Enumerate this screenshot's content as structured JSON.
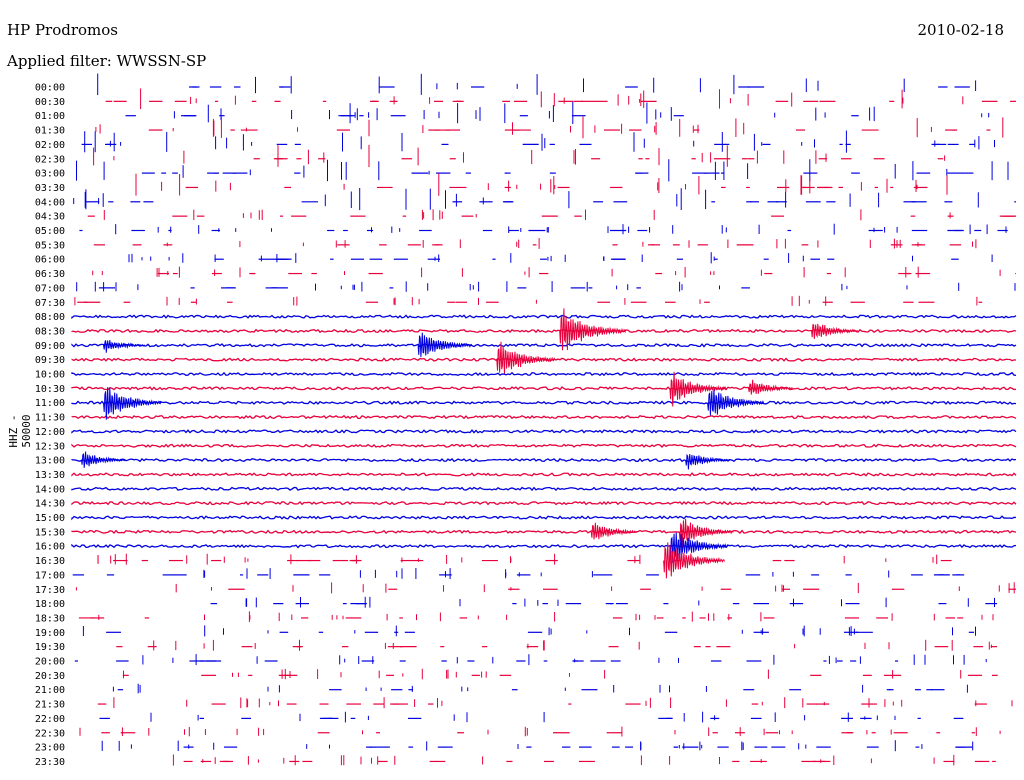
{
  "header": {
    "station": "HP Prodromos",
    "date": "2010-02-18",
    "filter_label": "Applied filter: WWSSN-SP",
    "channel_label": "HHZ - 50000"
  },
  "chart_data": {
    "type": "line",
    "title": "HP Prodromos",
    "subtitle": "Applied filter: WWSSN-SP",
    "ylabel": "HHZ - 50000",
    "xlabel": "",
    "colors": [
      "#0000e0",
      "#e8003c"
    ],
    "row_labels": [
      "00:00",
      "00:30",
      "01:00",
      "01:30",
      "02:00",
      "02:30",
      "03:00",
      "03:30",
      "04:00",
      "04:30",
      "05:00",
      "05:30",
      "06:00",
      "06:30",
      "07:00",
      "07:30",
      "08:00",
      "08:30",
      "09:00",
      "09:30",
      "10:00",
      "10:30",
      "11:00",
      "11:30",
      "12:00",
      "12:30",
      "13:00",
      "13:30",
      "14:00",
      "14:30",
      "15:00",
      "15:30",
      "16:00",
      "16:30",
      "17:00",
      "17:30",
      "18:00",
      "18:30",
      "19:00",
      "19:30",
      "20:00",
      "20:30",
      "21:00",
      "21:30",
      "22:00",
      "22:30",
      "23:00",
      "23:30"
    ],
    "continuous_rows": [
      16,
      17,
      18,
      19,
      20,
      21,
      22,
      23,
      24,
      25,
      26,
      27,
      28,
      29,
      30,
      31,
      32
    ],
    "events": [
      {
        "row": 17,
        "minute": 15.5,
        "amplitude": 30
      },
      {
        "row": 17,
        "minute": 23.5,
        "amplitude": 14
      },
      {
        "row": 18,
        "minute": 11.0,
        "amplitude": 20
      },
      {
        "row": 18,
        "minute": 1.0,
        "amplitude": 10
      },
      {
        "row": 19,
        "minute": 13.5,
        "amplitude": 24
      },
      {
        "row": 21,
        "minute": 19.0,
        "amplitude": 22
      },
      {
        "row": 21,
        "minute": 21.5,
        "amplitude": 12
      },
      {
        "row": 22,
        "minute": 1.0,
        "amplitude": 24
      },
      {
        "row": 22,
        "minute": 20.2,
        "amplitude": 22
      },
      {
        "row": 26,
        "minute": 0.3,
        "amplitude": 12
      },
      {
        "row": 26,
        "minute": 19.5,
        "amplitude": 12
      },
      {
        "row": 31,
        "minute": 16.5,
        "amplitude": 14
      },
      {
        "row": 31,
        "minute": 19.3,
        "amplitude": 20
      },
      {
        "row": 32,
        "minute": 19.0,
        "amplitude": 24
      },
      {
        "row": 33,
        "minute": 18.8,
        "amplitude": 26
      }
    ]
  }
}
